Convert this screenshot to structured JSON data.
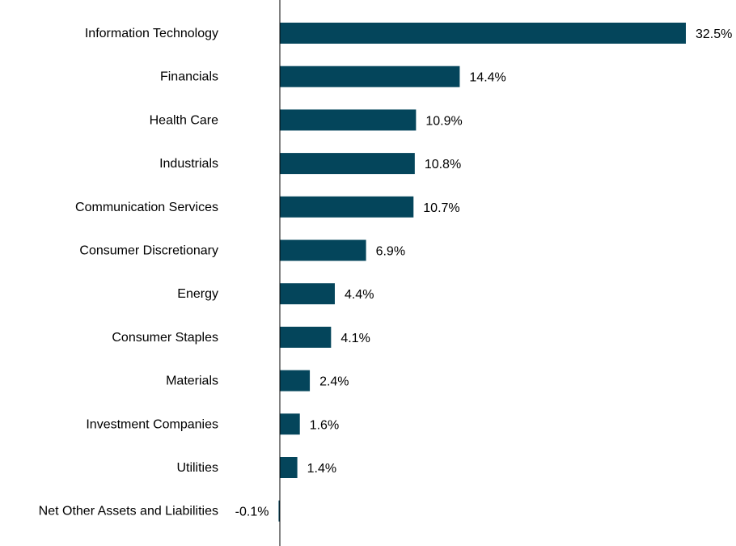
{
  "chart_data": {
    "type": "bar",
    "orientation": "horizontal",
    "categories": [
      "Information Technology",
      "Financials",
      "Health Care",
      "Industrials",
      "Communication Services",
      "Consumer Discretionary",
      "Energy",
      "Consumer Staples",
      "Materials",
      "Investment Companies",
      "Utilities",
      "Net Other Assets and Liabilities"
    ],
    "values": [
      32.5,
      14.4,
      10.9,
      10.8,
      10.7,
      6.9,
      4.4,
      4.1,
      2.4,
      1.6,
      1.4,
      -0.1
    ],
    "value_labels": [
      "32.5%",
      "14.4%",
      "10.9%",
      "10.8%",
      "10.7%",
      "6.9%",
      "4.4%",
      "4.1%",
      "2.4%",
      "1.6%",
      "1.4%",
      "-0.1%"
    ],
    "title": "",
    "xlabel": "",
    "ylabel": "",
    "xlim": [
      0,
      32.5
    ],
    "grid": false,
    "legend": "none",
    "bar_color": "#04455b",
    "axis_color": "#000000"
  }
}
